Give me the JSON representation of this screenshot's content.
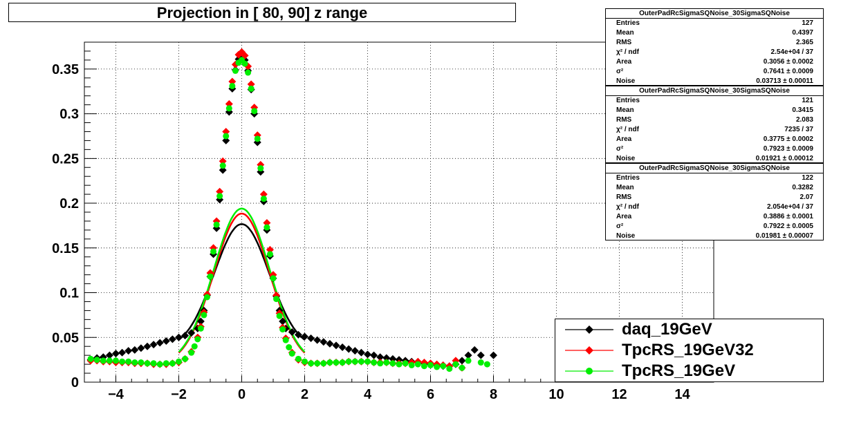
{
  "title": "Projection in [  80,  90] z range",
  "stats_boxes": [
    {
      "header": "OuterPadRcSigmaSQNoise_30SigmaSQNoise",
      "rows": [
        {
          "k": "Entries",
          "v": "127"
        },
        {
          "k": "Mean",
          "v": "0.4397"
        },
        {
          "k": "RMS",
          "v": "2.365"
        },
        {
          "k": "χ² / ndf",
          "v": "2.54e+04 / 37"
        },
        {
          "k": "Area",
          "v": "0.3056 ± 0.0002"
        },
        {
          "k": "σ²",
          "v": "0.7641 ± 0.0009"
        },
        {
          "k": "Noise",
          "v": "0.03713 ± 0.00011"
        }
      ]
    },
    {
      "header": "OuterPadRcSigmaSQNoise_30SigmaSQNoise",
      "rows": [
        {
          "k": "Entries",
          "v": "121"
        },
        {
          "k": "Mean",
          "v": "0.3415"
        },
        {
          "k": "RMS",
          "v": "2.083"
        },
        {
          "k": "χ² / ndf",
          "v": "7235 / 37"
        },
        {
          "k": "Area",
          "v": "0.3775 ± 0.0002"
        },
        {
          "k": "σ²",
          "v": "0.7923 ± 0.0009"
        },
        {
          "k": "Noise",
          "v": "0.01921 ± 0.00012"
        }
      ]
    },
    {
      "header": "OuterPadRcSigmaSQNoise_30SigmaSQNoise",
      "rows": [
        {
          "k": "Entries",
          "v": "122"
        },
        {
          "k": "Mean",
          "v": "0.3282"
        },
        {
          "k": "RMS",
          "v": "2.07"
        },
        {
          "k": "χ² / ndf",
          "v": "2.054e+04 / 37"
        },
        {
          "k": "Area",
          "v": "0.3886 ± 0.0001"
        },
        {
          "k": "σ²",
          "v": "0.7922 ± 0.0005"
        },
        {
          "k": "Noise",
          "v": "0.01981 ± 0.00007"
        }
      ]
    }
  ],
  "colors": {
    "daq": "#000000",
    "tpcrs32": "#ff0000",
    "tpcrs": "#00ee00",
    "grid": "#000000"
  },
  "chart_data": {
    "type": "scatter",
    "title": "Projection in [  80,  90] z range",
    "xlabel": "",
    "ylabel": "",
    "xlim": [
      -5,
      15
    ],
    "ylim": [
      0,
      0.38
    ],
    "grid": true,
    "legend_position": "bottom-right",
    "x_ticks": [
      -4,
      -2,
      0,
      2,
      4,
      6,
      8,
      10,
      12,
      14
    ],
    "x_tick_labels": [
      "−4",
      "−2",
      "0",
      "2",
      "4",
      "6",
      "8",
      "10",
      "12",
      "14"
    ],
    "y_ticks": [
      0,
      0.05,
      0.1,
      0.15,
      0.2,
      0.25,
      0.3,
      0.35
    ],
    "y_tick_labels": [
      "0",
      "0.05",
      "0.1",
      "0.15",
      "0.2",
      "0.25",
      "0.3",
      "0.35"
    ],
    "series": [
      {
        "name": "daq_19GeV",
        "color": "#000000",
        "marker": "diamond",
        "points": [
          [
            -4.8,
            0.025
          ],
          [
            -4.6,
            0.027
          ],
          [
            -4.4,
            0.028
          ],
          [
            -4.2,
            0.03
          ],
          [
            -4.0,
            0.032
          ],
          [
            -3.8,
            0.033
          ],
          [
            -3.6,
            0.035
          ],
          [
            -3.4,
            0.036
          ],
          [
            -3.2,
            0.038
          ],
          [
            -3.0,
            0.04
          ],
          [
            -2.8,
            0.042
          ],
          [
            -2.6,
            0.044
          ],
          [
            -2.4,
            0.046
          ],
          [
            -2.2,
            0.048
          ],
          [
            -2.0,
            0.05
          ],
          [
            -1.8,
            0.052
          ],
          [
            -1.6,
            0.055
          ],
          [
            -1.4,
            0.06
          ],
          [
            -1.3,
            0.068
          ],
          [
            -1.2,
            0.08
          ],
          [
            -1.1,
            0.097
          ],
          [
            -1.0,
            0.118
          ],
          [
            -0.9,
            0.143
          ],
          [
            -0.8,
            0.172
          ],
          [
            -0.7,
            0.204
          ],
          [
            -0.6,
            0.237
          ],
          [
            -0.5,
            0.27
          ],
          [
            -0.4,
            0.302
          ],
          [
            -0.3,
            0.328
          ],
          [
            -0.2,
            0.349
          ],
          [
            -0.1,
            0.361
          ],
          [
            0.0,
            0.365
          ],
          [
            0.1,
            0.36
          ],
          [
            0.2,
            0.348
          ],
          [
            0.3,
            0.327
          ],
          [
            0.4,
            0.3
          ],
          [
            0.5,
            0.268
          ],
          [
            0.6,
            0.235
          ],
          [
            0.7,
            0.202
          ],
          [
            0.8,
            0.17
          ],
          [
            0.9,
            0.141
          ],
          [
            1.0,
            0.116
          ],
          [
            1.1,
            0.096
          ],
          [
            1.2,
            0.08
          ],
          [
            1.3,
            0.068
          ],
          [
            1.4,
            0.06
          ],
          [
            1.6,
            0.056
          ],
          [
            1.8,
            0.053
          ],
          [
            2.0,
            0.051
          ],
          [
            2.2,
            0.049
          ],
          [
            2.4,
            0.047
          ],
          [
            2.6,
            0.045
          ],
          [
            2.8,
            0.043
          ],
          [
            3.0,
            0.041
          ],
          [
            3.2,
            0.039
          ],
          [
            3.4,
            0.037
          ],
          [
            3.6,
            0.035
          ],
          [
            3.8,
            0.033
          ],
          [
            4.0,
            0.031
          ],
          [
            4.2,
            0.03
          ],
          [
            4.4,
            0.028
          ],
          [
            4.6,
            0.027
          ],
          [
            4.8,
            0.026
          ],
          [
            5.0,
            0.025
          ],
          [
            5.2,
            0.024
          ],
          [
            5.4,
            0.023
          ],
          [
            5.6,
            0.022
          ],
          [
            5.8,
            0.021
          ],
          [
            6.0,
            0.02
          ],
          [
            6.2,
            0.019
          ],
          [
            6.4,
            0.018
          ],
          [
            6.6,
            0.018
          ],
          [
            6.8,
            0.02
          ],
          [
            7.0,
            0.024
          ],
          [
            7.2,
            0.03
          ],
          [
            7.4,
            0.036
          ],
          [
            7.6,
            0.03
          ],
          [
            8.0,
            0.03
          ]
        ]
      },
      {
        "name": "TpcRS_19GeV32",
        "color": "#ff0000",
        "marker": "diamond",
        "points": [
          [
            -4.8,
            0.024
          ],
          [
            -4.6,
            0.024
          ],
          [
            -4.4,
            0.023
          ],
          [
            -4.2,
            0.023
          ],
          [
            -4.0,
            0.022
          ],
          [
            -3.8,
            0.022
          ],
          [
            -3.6,
            0.022
          ],
          [
            -3.4,
            0.021
          ],
          [
            -3.2,
            0.021
          ],
          [
            -3.0,
            0.021
          ],
          [
            -2.8,
            0.02
          ],
          [
            -2.6,
            0.02
          ],
          [
            -2.4,
            0.02
          ],
          [
            -2.2,
            0.021
          ],
          [
            -2.0,
            0.022
          ],
          [
            -1.8,
            0.026
          ],
          [
            -1.6,
            0.034
          ],
          [
            -1.4,
            0.05
          ],
          [
            -1.3,
            0.062
          ],
          [
            -1.2,
            0.078
          ],
          [
            -1.1,
            0.098
          ],
          [
            -1.0,
            0.122
          ],
          [
            -0.9,
            0.15
          ],
          [
            -0.8,
            0.18
          ],
          [
            -0.7,
            0.213
          ],
          [
            -0.6,
            0.247
          ],
          [
            -0.5,
            0.28
          ],
          [
            -0.4,
            0.311
          ],
          [
            -0.3,
            0.336
          ],
          [
            -0.2,
            0.355
          ],
          [
            -0.1,
            0.366
          ],
          [
            0.0,
            0.369
          ],
          [
            0.1,
            0.365
          ],
          [
            0.2,
            0.353
          ],
          [
            0.3,
            0.333
          ],
          [
            0.4,
            0.307
          ],
          [
            0.5,
            0.276
          ],
          [
            0.6,
            0.243
          ],
          [
            0.7,
            0.21
          ],
          [
            0.8,
            0.178
          ],
          [
            0.9,
            0.148
          ],
          [
            1.0,
            0.12
          ],
          [
            1.1,
            0.097
          ],
          [
            1.2,
            0.077
          ],
          [
            1.3,
            0.061
          ],
          [
            1.4,
            0.049
          ],
          [
            1.6,
            0.033
          ],
          [
            1.8,
            0.025
          ],
          [
            2.0,
            0.022
          ],
          [
            2.2,
            0.021
          ],
          [
            2.4,
            0.021
          ],
          [
            2.6,
            0.021
          ],
          [
            2.8,
            0.022
          ],
          [
            3.0,
            0.022
          ],
          [
            3.2,
            0.022
          ],
          [
            3.4,
            0.023
          ],
          [
            3.6,
            0.023
          ],
          [
            3.8,
            0.023
          ],
          [
            4.0,
            0.023
          ],
          [
            4.2,
            0.022
          ],
          [
            4.4,
            0.022
          ],
          [
            4.6,
            0.022
          ],
          [
            4.8,
            0.021
          ],
          [
            5.0,
            0.021
          ],
          [
            5.2,
            0.021
          ],
          [
            5.4,
            0.022
          ],
          [
            5.6,
            0.023
          ],
          [
            5.8,
            0.022
          ],
          [
            6.0,
            0.021
          ],
          [
            6.2,
            0.02
          ],
          [
            6.4,
            0.019
          ],
          [
            6.6,
            0.018
          ],
          [
            6.8,
            0.024
          ],
          [
            7.0,
            0.016
          ]
        ]
      },
      {
        "name": "TpcRS_19GeV",
        "color": "#00ee00",
        "marker": "circle",
        "points": [
          [
            -4.8,
            0.026
          ],
          [
            -4.6,
            0.025
          ],
          [
            -4.4,
            0.024
          ],
          [
            -4.2,
            0.024
          ],
          [
            -4.0,
            0.024
          ],
          [
            -3.8,
            0.023
          ],
          [
            -3.6,
            0.023
          ],
          [
            -3.4,
            0.022
          ],
          [
            -3.2,
            0.022
          ],
          [
            -3.0,
            0.021
          ],
          [
            -2.8,
            0.021
          ],
          [
            -2.6,
            0.02
          ],
          [
            -2.4,
            0.021
          ],
          [
            -2.2,
            0.021
          ],
          [
            -2.0,
            0.023
          ],
          [
            -1.8,
            0.026
          ],
          [
            -1.6,
            0.033
          ],
          [
            -1.5,
            0.04
          ],
          [
            -1.4,
            0.048
          ],
          [
            -1.3,
            0.06
          ],
          [
            -1.2,
            0.075
          ],
          [
            -1.1,
            0.095
          ],
          [
            -1.0,
            0.118
          ],
          [
            -0.9,
            0.146
          ],
          [
            -0.8,
            0.176
          ],
          [
            -0.7,
            0.208
          ],
          [
            -0.6,
            0.242
          ],
          [
            -0.5,
            0.275
          ],
          [
            -0.4,
            0.306
          ],
          [
            -0.3,
            0.331
          ],
          [
            -0.2,
            0.348
          ],
          [
            -0.1,
            0.357
          ],
          [
            0.0,
            0.36
          ],
          [
            0.1,
            0.356
          ],
          [
            0.2,
            0.346
          ],
          [
            0.3,
            0.328
          ],
          [
            0.4,
            0.303
          ],
          [
            0.5,
            0.272
          ],
          [
            0.6,
            0.239
          ],
          [
            0.7,
            0.205
          ],
          [
            0.8,
            0.173
          ],
          [
            0.9,
            0.143
          ],
          [
            1.0,
            0.116
          ],
          [
            1.1,
            0.093
          ],
          [
            1.2,
            0.074
          ],
          [
            1.3,
            0.059
          ],
          [
            1.4,
            0.047
          ],
          [
            1.5,
            0.039
          ],
          [
            1.6,
            0.032
          ],
          [
            1.8,
            0.026
          ],
          [
            2.0,
            0.023
          ],
          [
            2.2,
            0.021
          ],
          [
            2.4,
            0.021
          ],
          [
            2.6,
            0.021
          ],
          [
            2.8,
            0.022
          ],
          [
            3.0,
            0.022
          ],
          [
            3.2,
            0.022
          ],
          [
            3.4,
            0.023
          ],
          [
            3.6,
            0.023
          ],
          [
            3.8,
            0.023
          ],
          [
            4.0,
            0.023
          ],
          [
            4.2,
            0.022
          ],
          [
            4.4,
            0.021
          ],
          [
            4.6,
            0.022
          ],
          [
            4.8,
            0.021
          ],
          [
            5.0,
            0.02
          ],
          [
            5.2,
            0.021
          ],
          [
            5.4,
            0.019
          ],
          [
            5.6,
            0.02
          ],
          [
            5.8,
            0.018
          ],
          [
            6.0,
            0.019
          ],
          [
            6.2,
            0.017
          ],
          [
            6.4,
            0.018
          ],
          [
            6.6,
            0.015
          ],
          [
            6.8,
            0.02
          ],
          [
            7.0,
            0.016
          ],
          [
            7.2,
            0.024
          ],
          [
            7.6,
            0.022
          ],
          [
            7.8,
            0.02
          ]
        ]
      }
    ],
    "fits": [
      {
        "name": "daq_19GeV fit",
        "color": "#000000",
        "area": 0.3056,
        "sigma2": 0.7641,
        "noise": 0.03713,
        "range": [
          -2.0,
          2.0
        ]
      },
      {
        "name": "TpcRS_19GeV32 fit",
        "color": "#ff0000",
        "area": 0.3775,
        "sigma2": 0.7923,
        "noise": 0.01921,
        "range": [
          -2.0,
          2.0
        ]
      },
      {
        "name": "TpcRS_19GeV fit",
        "color": "#00ee00",
        "area": 0.3886,
        "sigma2": 0.7922,
        "noise": 0.01981,
        "range": [
          -2.0,
          2.0
        ]
      }
    ]
  }
}
